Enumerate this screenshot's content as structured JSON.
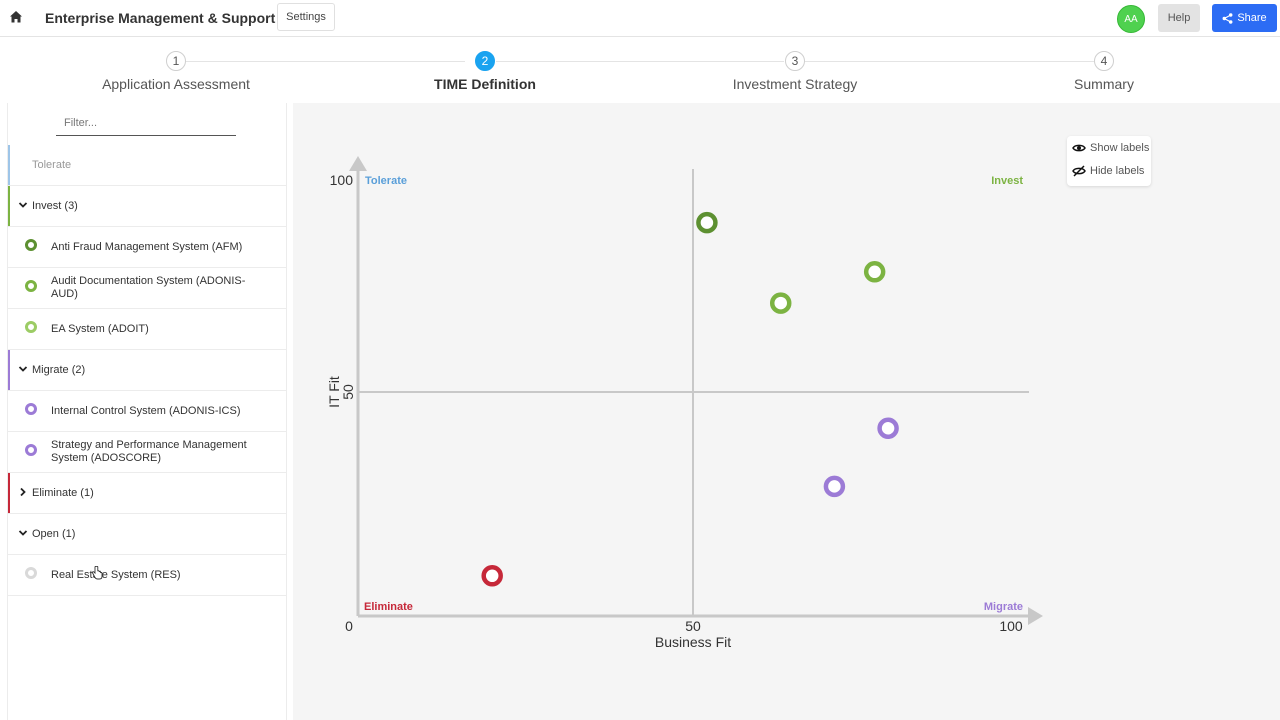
{
  "header": {
    "title": "Enterprise Management & Support",
    "settings_label": "Settings",
    "avatar_initials": "AA",
    "help_label": "Help",
    "share_label": "Share"
  },
  "steps": [
    {
      "number": "1",
      "label": "Application Assessment",
      "active": false
    },
    {
      "number": "2",
      "label": "TIME Definition",
      "active": true
    },
    {
      "number": "3",
      "label": "Investment Strategy",
      "active": false
    },
    {
      "number": "4",
      "label": "Summary",
      "active": false
    }
  ],
  "sidebar": {
    "filter_placeholder": "Filter...",
    "tolerate_label": "Tolerate",
    "invest_label": "Invest (3)",
    "invest_items": [
      "Anti Fraud Management System (AFM)",
      "Audit Documentation System (ADONIS-AUD)",
      "EA System (ADOIT)"
    ],
    "migrate_label": "Migrate (2)",
    "migrate_items": [
      "Internal Control System (ADONIS-ICS)",
      "Strategy and Performance Management System (ADOSCORE)"
    ],
    "eliminate_label": "Eliminate (1)",
    "open_label": "Open (1)",
    "open_items": [
      "Real Estate System (RES)"
    ]
  },
  "colors": {
    "tolerate": "#9ec5e8",
    "invest": "#7cb342",
    "invest_dark": "#5d9031",
    "invest_light": "#9ccc65",
    "migrate": "#9c7bd6",
    "eliminate": "#c62839",
    "open": "#d9d9d9",
    "accent": "#1aa3f0",
    "share": "#2c6cf4"
  },
  "labels_toggle": {
    "show_label": "Show labels",
    "hide_label": "Hide labels"
  },
  "chart_data": {
    "type": "scatter",
    "xlabel": "Business Fit",
    "ylabel": "IT Fit",
    "xlim": [
      0,
      100
    ],
    "ylim": [
      0,
      100
    ],
    "x_ticks": [
      "0",
      "50",
      "100"
    ],
    "y_ticks": [
      "50",
      "100"
    ],
    "quadrant_labels": {
      "top_left": "Tolerate",
      "top_right": "Invest",
      "bottom_left": "Eliminate",
      "bottom_right": "Migrate"
    },
    "points": [
      {
        "x": 52,
        "y": 88,
        "group": "invest",
        "color": "#5d9031"
      },
      {
        "x": 77,
        "y": 77,
        "group": "invest",
        "color": "#7cb342"
      },
      {
        "x": 63,
        "y": 70,
        "group": "invest",
        "color": "#7cb342"
      },
      {
        "x": 79,
        "y": 42,
        "group": "migrate",
        "color": "#9c7bd6"
      },
      {
        "x": 71,
        "y": 29,
        "group": "migrate",
        "color": "#9c7bd6"
      },
      {
        "x": 20,
        "y": 9,
        "group": "eliminate",
        "color": "#c62839"
      }
    ]
  }
}
